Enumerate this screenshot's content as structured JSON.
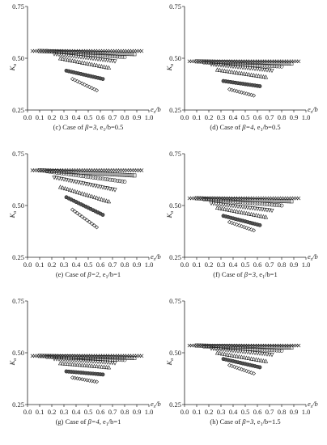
{
  "figure": {
    "y_axis_label": "K",
    "y_axis_label_sub": "a",
    "x_axis_label": "e",
    "x_axis_label_sub": "s",
    "x_axis_label_tail": "/b"
  },
  "chart_data": [
    {
      "type": "scatter",
      "caption": "(c) Case of β=3, e₁/b=0.5",
      "caption_parts": {
        "prefix": "(c) Case of ",
        "beta": "β=3",
        "mid": ", e",
        "sub": "1",
        "tail": "/b=0.5"
      },
      "xlim": [
        0.0,
        1.0
      ],
      "ylim": [
        0.25,
        0.75
      ],
      "xticks": [
        "0.0",
        "0.1",
        "0.2",
        "0.3",
        "0.4",
        "0.5",
        "0.6",
        "0.7",
        "0.8",
        "0.9",
        "1.0"
      ],
      "yticks": [
        "0.25",
        "0.50",
        "0.75"
      ],
      "top_value": 0.535,
      "top_range": [
        0.04,
        0.95
      ],
      "series": [
        {
          "marker": "x",
          "x0": 0.04,
          "x1": 0.95,
          "y0": 0.535,
          "y1": 0.535
        },
        {
          "marker": "square",
          "x0": 0.1,
          "x1": 0.88,
          "y0": 0.535,
          "y1": 0.52
        },
        {
          "marker": "circle",
          "x0": 0.16,
          "x1": 0.8,
          "y0": 0.535,
          "y1": 0.505
        },
        {
          "marker": "triangle-down",
          "x0": 0.22,
          "x1": 0.72,
          "y0": 0.52,
          "y1": 0.485
        },
        {
          "marker": "triangle-up",
          "x0": 0.27,
          "x1": 0.66,
          "y0": 0.5,
          "y1": 0.455
        },
        {
          "marker": "circle-dark",
          "x0": 0.32,
          "x1": 0.62,
          "y0": 0.44,
          "y1": 0.4
        },
        {
          "marker": "diamond",
          "x0": 0.37,
          "x1": 0.58,
          "y0": 0.4,
          "y1": 0.345
        }
      ]
    },
    {
      "type": "scatter",
      "caption": "(d) Case of β=4, e₁/b=0.5",
      "caption_parts": {
        "prefix": "(d) Case of ",
        "beta": "β=4",
        "mid": ", e",
        "sub": "1",
        "tail": "/b=0.5"
      },
      "xlim": [
        0.0,
        1.0
      ],
      "ylim": [
        0.25,
        0.75
      ],
      "xticks": [
        "0.0",
        "0.1",
        "0.2",
        "0.3",
        "0.4",
        "0.5",
        "0.6",
        "0.7",
        "0.8",
        "0.9",
        "1.0"
      ],
      "yticks": [
        "0.25",
        "0.50",
        "0.75"
      ],
      "series": [
        {
          "marker": "x",
          "x0": 0.04,
          "x1": 0.95,
          "y0": 0.485,
          "y1": 0.485
        },
        {
          "marker": "square",
          "x0": 0.1,
          "x1": 0.88,
          "y0": 0.485,
          "y1": 0.475
        },
        {
          "marker": "circle",
          "x0": 0.16,
          "x1": 0.8,
          "y0": 0.48,
          "y1": 0.46
        },
        {
          "marker": "triangle-down",
          "x0": 0.22,
          "x1": 0.72,
          "y0": 0.47,
          "y1": 0.44
        },
        {
          "marker": "triangle-up",
          "x0": 0.27,
          "x1": 0.66,
          "y0": 0.445,
          "y1": 0.41
        },
        {
          "marker": "circle-dark",
          "x0": 0.32,
          "x1": 0.62,
          "y0": 0.39,
          "y1": 0.365
        },
        {
          "marker": "diamond",
          "x0": 0.37,
          "x1": 0.58,
          "y0": 0.35,
          "y1": 0.32
        }
      ]
    },
    {
      "type": "scatter",
      "caption": "(e) Case of β=2, e₁/b=1",
      "caption_parts": {
        "prefix": "(e) Case of ",
        "beta": "β=2",
        "mid": ", e",
        "sub": "1",
        "tail": "/b=1"
      },
      "xlim": [
        0.0,
        1.0
      ],
      "ylim": [
        0.25,
        0.75
      ],
      "xticks": [
        "0.0",
        "0.1",
        "0.2",
        "0.3",
        "0.4",
        "0.5",
        "0.6",
        "0.7",
        "0.8",
        "0.9",
        "1.0"
      ],
      "yticks": [
        "0.25",
        "0.50",
        "0.75"
      ],
      "series": [
        {
          "marker": "x",
          "x0": 0.04,
          "x1": 0.95,
          "y0": 0.67,
          "y1": 0.67
        },
        {
          "marker": "square",
          "x0": 0.1,
          "x1": 0.88,
          "y0": 0.67,
          "y1": 0.645
        },
        {
          "marker": "circle",
          "x0": 0.16,
          "x1": 0.8,
          "y0": 0.665,
          "y1": 0.615
        },
        {
          "marker": "triangle-down",
          "x0": 0.22,
          "x1": 0.72,
          "y0": 0.635,
          "y1": 0.575
        },
        {
          "marker": "triangle-up",
          "x0": 0.27,
          "x1": 0.66,
          "y0": 0.59,
          "y1": 0.52
        },
        {
          "marker": "circle-dark",
          "x0": 0.32,
          "x1": 0.62,
          "y0": 0.54,
          "y1": 0.455
        },
        {
          "marker": "diamond",
          "x0": 0.37,
          "x1": 0.58,
          "y0": 0.48,
          "y1": 0.395
        }
      ]
    },
    {
      "type": "scatter",
      "caption": "(f) Case of β=3, e₁/b=1",
      "caption_parts": {
        "prefix": "(f) Case of ",
        "beta": "β=3",
        "mid": ", e",
        "sub": "1",
        "tail": "/b=1"
      },
      "xlim": [
        0.0,
        1.0
      ],
      "ylim": [
        0.25,
        0.75
      ],
      "xticks": [
        "0.0",
        "0.1",
        "0.2",
        "0.3",
        "0.4",
        "0.5",
        "0.6",
        "0.7",
        "0.8",
        "0.9",
        "1.0"
      ],
      "yticks": [
        "0.25",
        "0.50",
        "0.75"
      ],
      "series": [
        {
          "marker": "x",
          "x0": 0.04,
          "x1": 0.95,
          "y0": 0.535,
          "y1": 0.535
        },
        {
          "marker": "square",
          "x0": 0.1,
          "x1": 0.88,
          "y0": 0.535,
          "y1": 0.52
        },
        {
          "marker": "circle",
          "x0": 0.16,
          "x1": 0.8,
          "y0": 0.53,
          "y1": 0.5
        },
        {
          "marker": "triangle-down",
          "x0": 0.22,
          "x1": 0.72,
          "y0": 0.51,
          "y1": 0.475
        },
        {
          "marker": "triangle-up",
          "x0": 0.27,
          "x1": 0.66,
          "y0": 0.49,
          "y1": 0.445
        },
        {
          "marker": "circle-dark",
          "x0": 0.32,
          "x1": 0.62,
          "y0": 0.45,
          "y1": 0.405
        },
        {
          "marker": "diamond",
          "x0": 0.37,
          "x1": 0.58,
          "y0": 0.42,
          "y1": 0.38
        }
      ]
    },
    {
      "type": "scatter",
      "caption": "(g) Case of β=4, e₁/b=1",
      "caption_parts": {
        "prefix": "(g) Case of ",
        "beta": "β=4",
        "mid": ", e",
        "sub": "1",
        "tail": "/b=1"
      },
      "xlim": [
        0.0,
        1.0
      ],
      "ylim": [
        0.25,
        0.75
      ],
      "xticks": [
        "0.0",
        "0.1",
        "0.2",
        "0.3",
        "0.4",
        "0.5",
        "0.6",
        "0.7",
        "0.8",
        "0.9",
        "1.0"
      ],
      "yticks": [
        "0.25",
        "0.50",
        "0.75"
      ],
      "series": [
        {
          "marker": "x",
          "x0": 0.04,
          "x1": 0.95,
          "y0": 0.485,
          "y1": 0.485
        },
        {
          "marker": "square",
          "x0": 0.1,
          "x1": 0.88,
          "y0": 0.485,
          "y1": 0.475
        },
        {
          "marker": "circle",
          "x0": 0.16,
          "x1": 0.8,
          "y0": 0.48,
          "y1": 0.465
        },
        {
          "marker": "triangle-down",
          "x0": 0.22,
          "x1": 0.72,
          "y0": 0.47,
          "y1": 0.45
        },
        {
          "marker": "triangle-up",
          "x0": 0.27,
          "x1": 0.66,
          "y0": 0.45,
          "y1": 0.43
        },
        {
          "marker": "circle-dark",
          "x0": 0.32,
          "x1": 0.62,
          "y0": 0.41,
          "y1": 0.395
        },
        {
          "marker": "diamond",
          "x0": 0.37,
          "x1": 0.58,
          "y0": 0.38,
          "y1": 0.36
        }
      ]
    },
    {
      "type": "scatter",
      "caption": "(h) Case of β=3, e₁/b=1.5",
      "caption_parts": {
        "prefix": "(h) Case of ",
        "beta": "β=3",
        "mid": ", e",
        "sub": "1",
        "tail": "/b=1.5"
      },
      "xlim": [
        0.0,
        1.0
      ],
      "ylim": [
        0.25,
        0.75
      ],
      "xticks": [
        "0.0",
        "0.1",
        "0.2",
        "0.3",
        "0.4",
        "0.5",
        "0.6",
        "0.7",
        "0.8",
        "0.9",
        "1.0"
      ],
      "yticks": [
        "0.25",
        "0.50",
        "0.75"
      ],
      "series": [
        {
          "marker": "x",
          "x0": 0.04,
          "x1": 0.95,
          "y0": 0.535,
          "y1": 0.535
        },
        {
          "marker": "square",
          "x0": 0.1,
          "x1": 0.88,
          "y0": 0.535,
          "y1": 0.525
        },
        {
          "marker": "circle",
          "x0": 0.16,
          "x1": 0.8,
          "y0": 0.53,
          "y1": 0.51
        },
        {
          "marker": "triangle-down",
          "x0": 0.22,
          "x1": 0.72,
          "y0": 0.52,
          "y1": 0.49
        },
        {
          "marker": "triangle-up",
          "x0": 0.27,
          "x1": 0.66,
          "y0": 0.5,
          "y1": 0.46
        },
        {
          "marker": "circle-dark",
          "x0": 0.32,
          "x1": 0.62,
          "y0": 0.47,
          "y1": 0.43
        },
        {
          "marker": "diamond",
          "x0": 0.37,
          "x1": 0.58,
          "y0": 0.44,
          "y1": 0.4
        }
      ]
    }
  ]
}
